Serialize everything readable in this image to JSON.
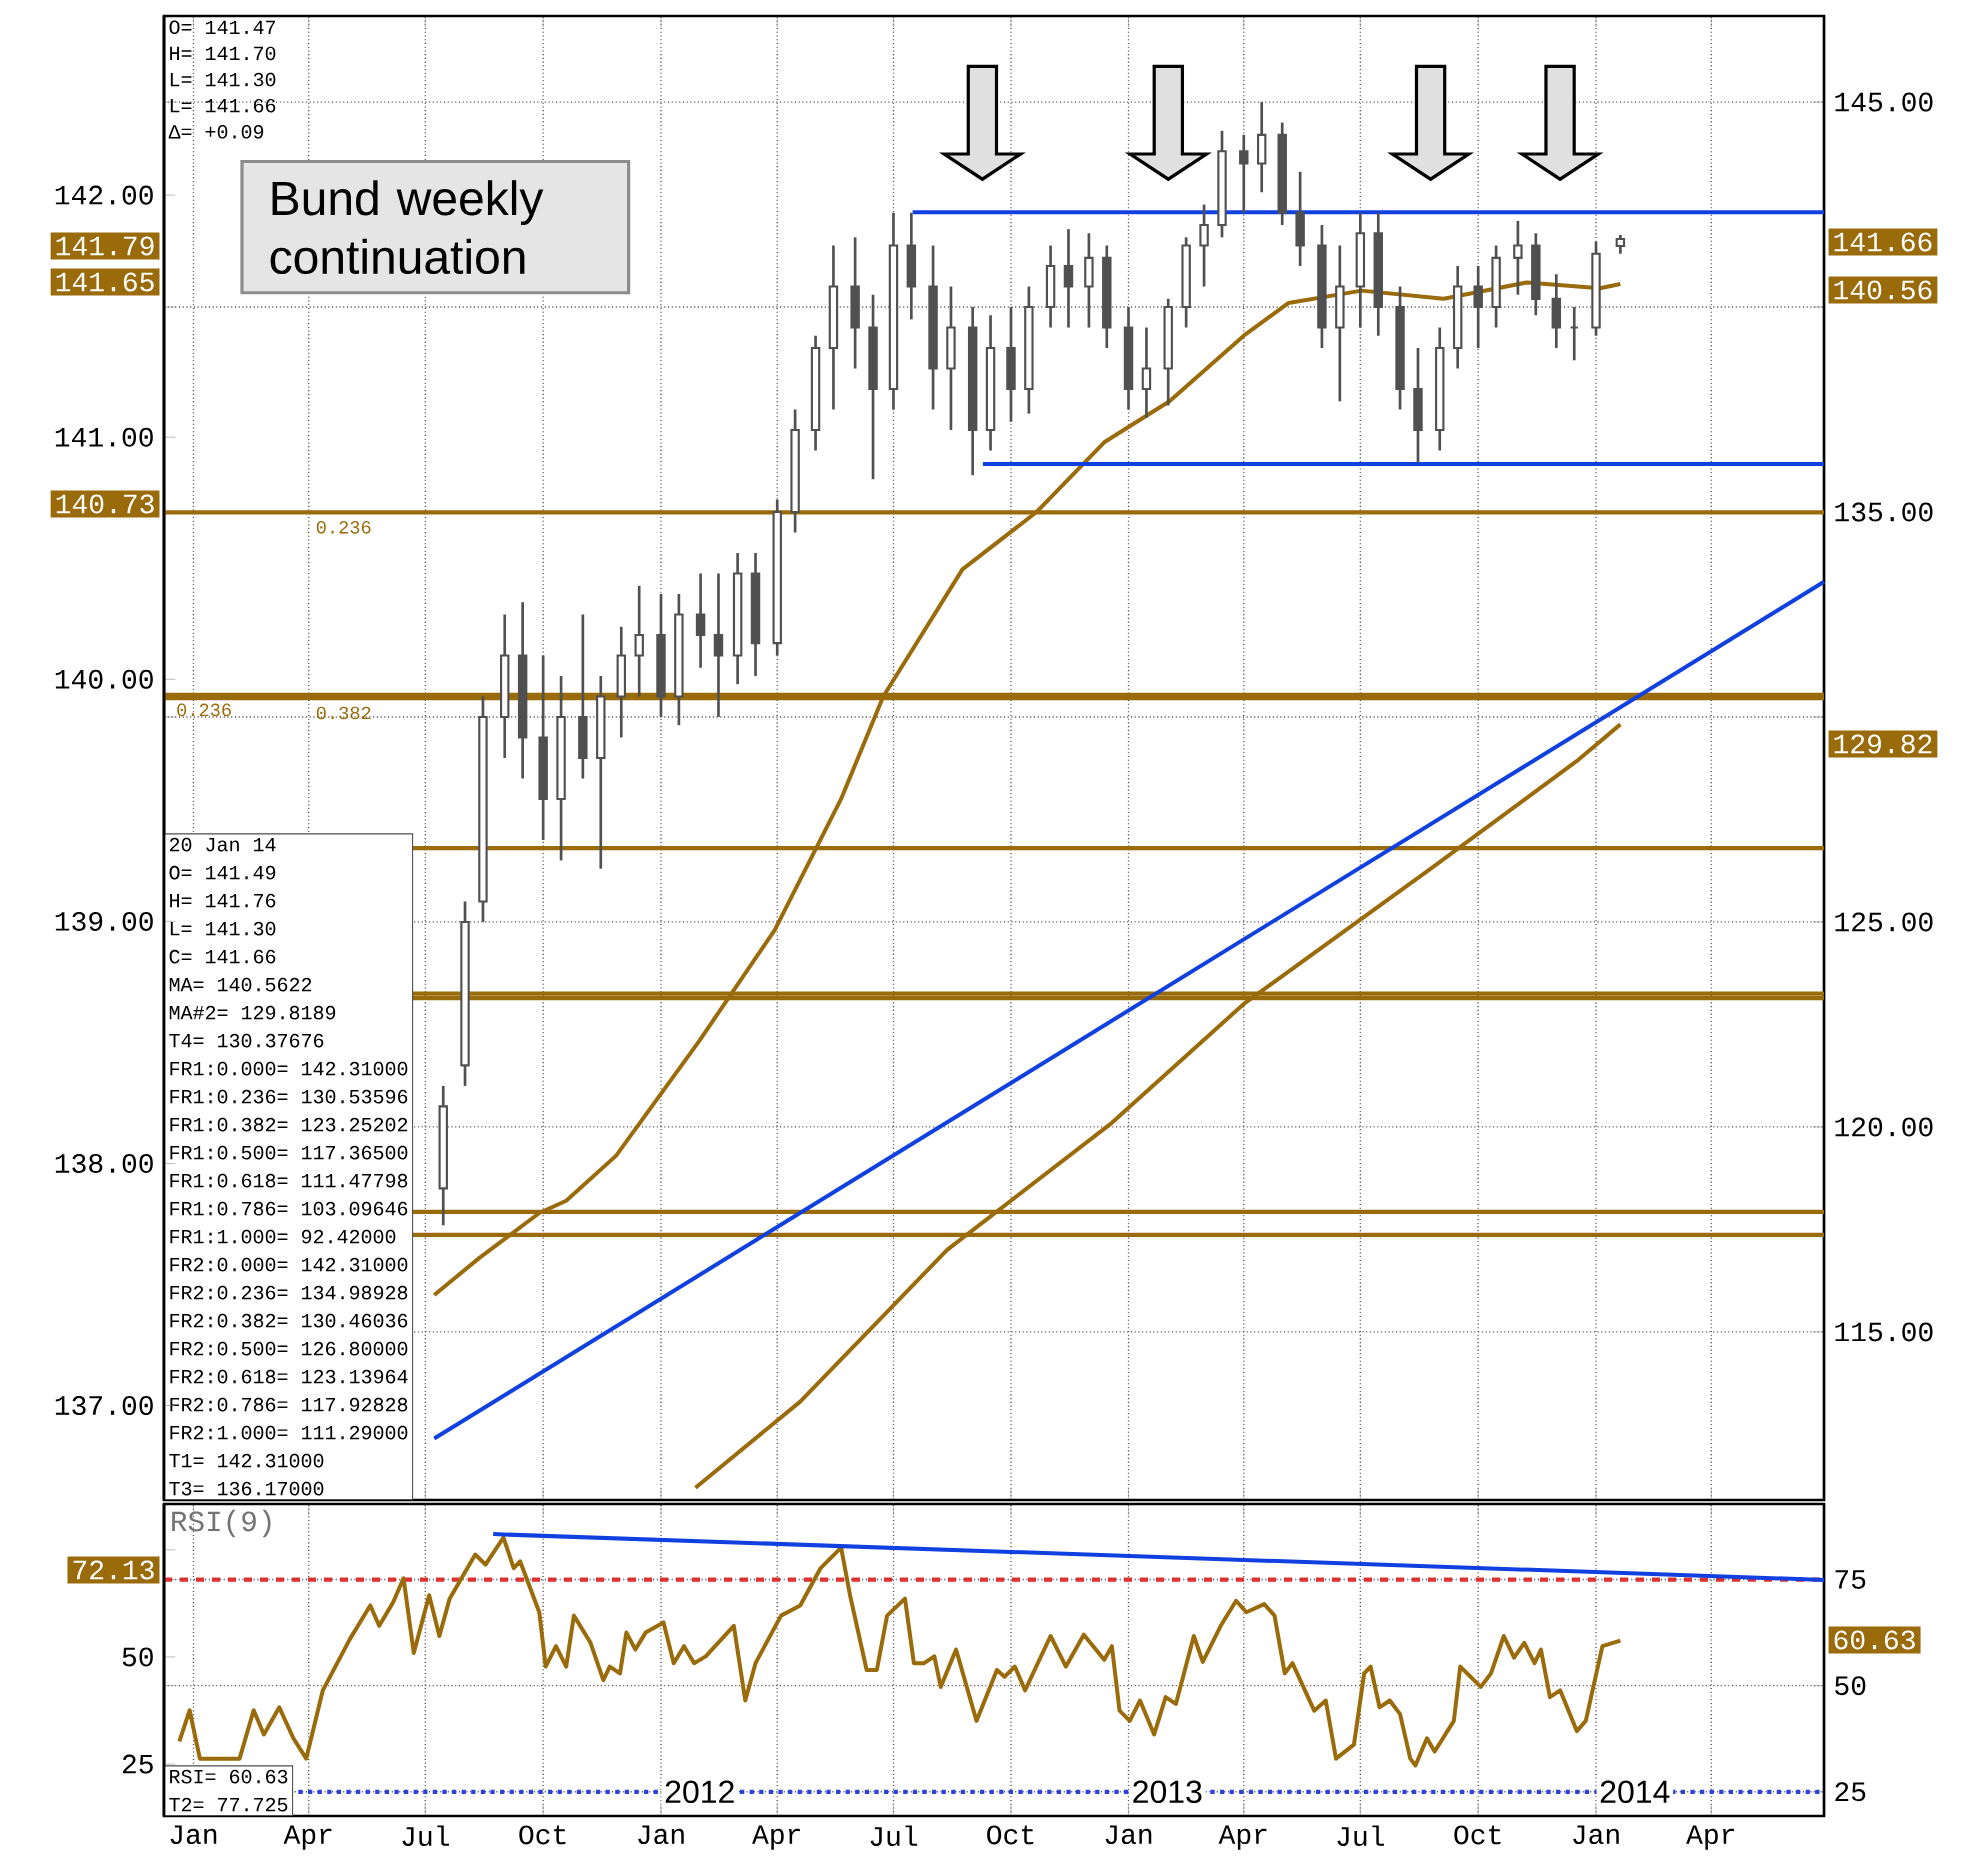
{
  "chart_data": [
    {
      "type": "candlestick",
      "title": "Bund weekly continuation",
      "color": "#505050",
      "x": [
        "2011-07-15",
        "2011-08-01",
        "2011-08-15",
        "2011-09-01",
        "2011-09-15",
        "2011-10-01",
        "2011-10-15",
        "2011-11-01",
        "2011-11-15",
        "2011-12-01",
        "2011-12-15",
        "2012-01-01",
        "2012-01-15",
        "2012-02-01",
        "2012-02-15",
        "2012-03-01",
        "2012-03-15",
        "2012-04-01",
        "2012-04-15",
        "2012-05-01",
        "2012-05-15",
        "2012-06-01",
        "2012-06-15",
        "2012-07-01",
        "2012-07-15",
        "2012-08-01",
        "2012-08-15",
        "2012-09-01",
        "2012-09-15",
        "2012-10-01",
        "2012-10-15",
        "2012-11-01",
        "2012-11-15",
        "2012-12-01",
        "2012-12-15",
        "2013-01-01",
        "2013-01-15",
        "2013-02-01",
        "2013-02-15",
        "2013-03-01",
        "2013-03-15",
        "2013-04-01",
        "2013-04-15",
        "2013-05-01",
        "2013-05-15",
        "2013-06-01",
        "2013-06-15",
        "2013-07-01",
        "2013-07-15",
        "2013-08-01",
        "2013-08-15",
        "2013-09-01",
        "2013-09-15",
        "2013-10-01",
        "2013-10-15",
        "2013-11-01",
        "2013-11-15",
        "2013-12-01",
        "2013-12-15",
        "2014-01-01",
        "2014-01-20"
      ],
      "ohlc": [
        [
          118.5,
          121,
          117.6,
          120.5
        ],
        [
          121.5,
          125.5,
          121,
          125
        ],
        [
          125.5,
          130.5,
          125,
          130
        ],
        [
          130,
          132.5,
          129,
          131.5
        ],
        [
          131.5,
          132.8,
          128.5,
          129.5
        ],
        [
          129.5,
          131.5,
          127,
          128
        ],
        [
          128,
          131,
          126.5,
          130
        ],
        [
          130,
          132.5,
          128.5,
          129
        ],
        [
          129,
          131,
          126.3,
          130.5
        ],
        [
          130.5,
          132.2,
          129.5,
          131.5
        ],
        [
          131.5,
          133.2,
          130.5,
          132
        ],
        [
          132,
          133,
          130,
          130.5
        ],
        [
          130.5,
          133,
          129.8,
          132.5
        ],
        [
          132.5,
          133.5,
          131.2,
          132
        ],
        [
          132,
          133.5,
          130,
          131.5
        ],
        [
          131.5,
          134,
          130.8,
          133.5
        ],
        [
          133.5,
          134,
          131,
          131.8
        ],
        [
          131.8,
          135.3,
          131.5,
          135
        ],
        [
          135,
          137.5,
          134.5,
          137
        ],
        [
          137,
          139.3,
          136.5,
          139
        ],
        [
          139,
          141.5,
          137.5,
          140.5
        ],
        [
          140.5,
          141.7,
          138.5,
          139.5
        ],
        [
          139.5,
          140.3,
          135.8,
          138
        ],
        [
          138,
          142.3,
          137.5,
          141.5
        ],
        [
          141.5,
          142.3,
          139.7,
          140.5
        ],
        [
          140.5,
          141.5,
          137.5,
          138.5
        ],
        [
          138.5,
          140.5,
          137,
          139.5
        ],
        [
          139.5,
          140,
          135.9,
          137
        ],
        [
          137,
          139.8,
          136.5,
          139
        ],
        [
          139,
          140,
          137.2,
          138
        ],
        [
          138,
          140.5,
          137.4,
          140
        ],
        [
          140,
          141.5,
          139.5,
          141
        ],
        [
          141,
          141.9,
          139.5,
          140.5
        ],
        [
          140.5,
          141.8,
          139.5,
          141.2
        ],
        [
          141.2,
          141.5,
          139,
          139.5
        ],
        [
          139.5,
          140,
          137.5,
          138
        ],
        [
          138,
          139.5,
          137.3,
          138.5
        ],
        [
          138.5,
          140.2,
          137.6,
          140
        ],
        [
          140,
          141.7,
          139.5,
          141.5
        ],
        [
          141.5,
          142.5,
          140.5,
          142
        ],
        [
          142,
          144.3,
          141.7,
          143.8
        ],
        [
          143.8,
          144.2,
          142.3,
          143.5
        ],
        [
          143.5,
          145,
          142.8,
          144.2
        ],
        [
          144.2,
          144.5,
          142,
          142.3
        ],
        [
          142.3,
          143.3,
          141,
          141.5
        ],
        [
          141.5,
          142,
          139,
          139.5
        ],
        [
          139.5,
          141.5,
          137.7,
          140.5
        ],
        [
          140.5,
          142.3,
          139.5,
          141.8
        ],
        [
          141.8,
          142.3,
          139.3,
          140
        ],
        [
          140,
          140.5,
          137.5,
          138
        ],
        [
          138,
          139,
          136.2,
          137
        ],
        [
          137,
          139.5,
          136.5,
          139
        ],
        [
          139,
          141,
          138.5,
          140.5
        ],
        [
          140.5,
          141,
          139,
          140
        ],
        [
          140,
          141.5,
          139.5,
          141.2
        ],
        [
          141.2,
          142.1,
          140.3,
          141.5
        ],
        [
          141.5,
          141.8,
          139.8,
          140.2
        ],
        [
          140.2,
          140.8,
          139,
          139.5
        ],
        [
          139.5,
          140,
          138.7,
          139.5
        ],
        [
          139.5,
          141.6,
          139.3,
          141.3
        ],
        [
          141.49,
          141.76,
          141.3,
          141.66
        ]
      ],
      "series": [
        {
          "type": "line",
          "color": "#9a6b0a",
          "x": [
            "2011-07-08",
            "2011-08-12",
            "2011-09-28",
            "2011-10-19",
            "2011-11-27",
            "2012-01-31",
            "2012-03-30",
            "2012-05-21",
            "2012-06-23",
            "2012-08-24",
            "2012-10-21",
            "2012-12-13",
            "2013-02-02",
            "2013-04-01",
            "2013-05-06",
            "2013-07-02",
            "2013-09-04",
            "2013-11-08",
            "2014-01-04",
            "2014-01-20"
          ],
          "values": [
            115.9,
            116.8,
            117.9,
            118.2,
            119.3,
            122.1,
            124.8,
            128.0,
            130.5,
            133.6,
            135.0,
            136.7,
            137.7,
            139.3,
            140.1,
            140.4,
            140.2,
            140.6,
            140.46,
            140.56
          ]
        },
        {
          "type": "line",
          "color": "#9a6b0a",
          "x": [
            "2012-01-28",
            "2012-04-19",
            "2012-08-12",
            "2012-12-19",
            "2013-04-01",
            "2013-08-25",
            "2013-12-18",
            "2014-01-20"
          ],
          "values": [
            111.2,
            113.3,
            117.0,
            120.1,
            123.0,
            126.3,
            128.95,
            129.82
          ]
        },
        {
          "type": "line",
          "color": "#1040e0",
          "x": [
            "2011-07-08",
            "2014-06-28"
          ],
          "values": [
            112.4,
            133.3
          ]
        },
        {
          "type": "line",
          "color": "#1040e0",
          "x": [
            "2012-07-16",
            "2014-06-28"
          ],
          "values": [
            142.31,
            142.31
          ]
        },
        {
          "type": "line",
          "color": "#1040e0",
          "x": [
            "2012-09-09",
            "2014-06-28"
          ],
          "values": [
            136.17,
            136.17
          ]
        }
      ],
      "xlim": [
        "2010-12-09",
        "2014-06-28"
      ],
      "xticks": [
        {
          "value": "2011-01-01",
          "label": null
        },
        {
          "value": "2011-04-01",
          "label": null
        },
        {
          "value": "2011-07-01",
          "label": null
        },
        {
          "value": "2011-10-01",
          "label": null
        },
        {
          "value": "2012-01-01",
          "label": null
        },
        {
          "value": "2012-04-01",
          "label": null
        },
        {
          "value": "2012-07-01",
          "label": null
        },
        {
          "value": "2012-10-01",
          "label": null
        },
        {
          "value": "2013-01-01",
          "label": null
        },
        {
          "value": "2013-04-01",
          "label": null
        },
        {
          "value": "2013-07-01",
          "label": null
        },
        {
          "value": "2013-10-01",
          "label": null
        },
        {
          "value": "2014-01-01",
          "label": null
        },
        {
          "value": "2014-04-01",
          "label": null
        }
      ],
      "ylim": [
        110.9,
        147.1
      ],
      "yticks": [
        {
          "value": 115,
          "label": "115.00"
        },
        {
          "value": 120,
          "label": "120.00"
        },
        {
          "value": 125,
          "label": "125.00"
        },
        {
          "value": 130,
          "label": null
        },
        {
          "value": 135,
          "label": "135.00"
        },
        {
          "value": 140,
          "label": null
        },
        {
          "value": 145,
          "label": "145.00"
        }
      ],
      "y2lim": [
        136.61,
        142.74
      ],
      "y2ticks": [
        {
          "value": 137,
          "label": "137.00"
        },
        {
          "value": 138,
          "label": "138.00"
        },
        {
          "value": 139,
          "label": "139.00"
        },
        {
          "value": 140,
          "label": "140.00"
        },
        {
          "value": 141,
          "label": "141.00"
        },
        {
          "value": 142,
          "label": "142.00"
        }
      ],
      "tick_labels": "y",
      "grid": true,
      "ref_lines": [
        {
          "axis": "y",
          "value": 134.98928,
          "color": "#9a6b0a"
        },
        {
          "axis": "y",
          "value": 130.53596,
          "color": "#9a6b0a"
        },
        {
          "axis": "y",
          "value": 130.46036,
          "color": "#9a6b0a"
        },
        {
          "axis": "y",
          "value": 126.8,
          "color": "#9a6b0a"
        },
        {
          "axis": "y",
          "value": 123.25202,
          "color": "#9a6b0a"
        },
        {
          "axis": "y",
          "value": 123.13964,
          "color": "#9a6b0a"
        },
        {
          "axis": "y",
          "value": 117.92828,
          "color": "#9a6b0a"
        },
        {
          "axis": "y",
          "value": 117.365,
          "color": "#9a6b0a"
        }
      ],
      "annotations": [
        "O= 141.47",
        "H= 141.70",
        "L= 141.30",
        "L= 141.66",
        "Δ= +0.09",
        "20 Jan 14",
        "O= 141.49",
        "H= 141.76",
        "L= 141.30",
        "C= 141.66",
        "MA= 140.5622",
        "MA#2= 129.8189",
        "T4= 130.37676",
        "FR1:0.000= 142.31000",
        "FR1:0.236= 130.53596",
        "FR1:0.382= 123.25202",
        "FR1:0.500= 117.36500",
        "FR1:0.618= 111.47798",
        "FR1:0.786= 103.09646",
        "FR1:1.000= 92.42000",
        "FR2:0.000= 142.31000",
        "FR2:0.236= 134.98928",
        "FR2:0.382= 130.46036",
        "FR2:0.500= 126.80000",
        "FR2:0.618= 123.13964",
        "FR2:0.786= 117.92828",
        "FR2:1.000= 111.29000",
        "T1= 142.31000",
        "T3= 136.17000",
        "141.79",
        "141.65",
        "140.73",
        "141.66",
        "140.56",
        "129.82",
        {
          "text": "0.236",
          "x": "2011-04-05",
          "y": 134.98928
        },
        {
          "text": "0.236",
          "x": "2010-12-17",
          "y": 130.53596
        },
        {
          "text": "0.382",
          "x": "2011-04-05",
          "y": 130.46036
        }
      ]
    },
    {
      "type": "line",
      "title": "RSI(9)",
      "series": [
        {
          "color": "#9a6b0a",
          "x": [
            "2010-12-21",
            "2010-12-29",
            "2011-01-06",
            "2011-02-06",
            "2011-02-17",
            "2011-02-25",
            "2011-03-09",
            "2011-03-20",
            "2011-03-30",
            "2011-04-12",
            "2011-05-03",
            "2011-05-19",
            "2011-05-26",
            "2011-06-06",
            "2011-06-14",
            "2011-06-22",
            "2011-07-04",
            "2011-07-12",
            "2011-07-20",
            "2011-08-09",
            "2011-08-17",
            "2011-08-31",
            "2011-09-08",
            "2011-09-13",
            "2011-09-28",
            "2011-10-03",
            "2011-10-11",
            "2011-10-19",
            "2011-10-25",
            "2011-11-07",
            "2011-11-17",
            "2011-11-22",
            "2011-11-30",
            "2011-12-05",
            "2011-12-12",
            "2011-12-20",
            "2012-01-03",
            "2012-01-11",
            "2012-01-19",
            "2012-01-27",
            "2012-02-05",
            "2012-02-27",
            "2012-03-07",
            "2012-03-15",
            "2012-04-04",
            "2012-04-19",
            "2012-05-05",
            "2012-05-21",
            "2012-05-28",
            "2012-06-10",
            "2012-06-18",
            "2012-06-26",
            "2012-07-10",
            "2012-07-17",
            "2012-07-25",
            "2012-08-02",
            "2012-08-07",
            "2012-08-19",
            "2012-09-04",
            "2012-09-20",
            "2012-09-26",
            "2012-10-04",
            "2012-10-12",
            "2012-11-01",
            "2012-11-13",
            "2012-11-27",
            "2012-12-13",
            "2012-12-19",
            "2012-12-25",
            "2013-01-02",
            "2013-01-10",
            "2013-01-21",
            "2013-01-30",
            "2013-02-07",
            "2013-02-21",
            "2013-02-28",
            "2013-03-14",
            "2013-03-26",
            "2013-04-03",
            "2013-04-17",
            "2013-04-25",
            "2013-05-03",
            "2013-05-09",
            "2013-05-26",
            "2013-06-04",
            "2013-06-12",
            "2013-06-26",
            "2013-07-04",
            "2013-07-09",
            "2013-07-16",
            "2013-07-24",
            "2013-08-01",
            "2013-08-09",
            "2013-08-13",
            "2013-08-22",
            "2013-08-28",
            "2013-09-12",
            "2013-09-17",
            "2013-10-03",
            "2013-10-11",
            "2013-10-21",
            "2013-10-29",
            "2013-11-06",
            "2013-11-14",
            "2013-11-19",
            "2013-11-26",
            "2013-12-04",
            "2013-12-17",
            "2013-12-24",
            "2014-01-06",
            "2014-01-20"
          ],
          "values": [
            36.9,
            44.2,
            32.8,
            32.8,
            44.2,
            38.5,
            44.9,
            37.6,
            32.8,
            48.9,
            60.9,
            68.9,
            64.1,
            69.7,
            75.3,
            57.7,
            71.3,
            61.7,
            70.5,
            80.9,
            78.5,
            84.9,
            77.7,
            79.3,
            67.3,
            54.5,
            59.3,
            54.5,
            66.5,
            60.1,
            51.3,
            54.5,
            52.9,
            62.5,
            58.5,
            62.5,
            64.9,
            55.3,
            59.3,
            55.3,
            56.9,
            64.1,
            46.5,
            55.3,
            66.5,
            68.9,
            77.7,
            82.5,
            71.3,
            53.7,
            53.7,
            66.5,
            70.5,
            55.3,
            55.3,
            56.9,
            49.7,
            58.5,
            41.7,
            53.7,
            52.1,
            54.5,
            48.9,
            61.7,
            54.5,
            62.0,
            56.1,
            59.3,
            44.1,
            41.7,
            46.5,
            38.5,
            47.3,
            45.7,
            61.7,
            55.6,
            64.1,
            70.0,
            67.3,
            69.2,
            66.5,
            52.9,
            55.3,
            44.1,
            46.5,
            32.8,
            36.1,
            52.9,
            54.5,
            44.9,
            46.5,
            43.3,
            32.8,
            31.2,
            37.6,
            34.5,
            41.7,
            54.5,
            49.7,
            52.9,
            61.7,
            56.6,
            60.1,
            55.3,
            58.5,
            47.3,
            48.9,
            39.3,
            41.7,
            59.3,
            60.63
          ]
        },
        {
          "color": "#1040e0",
          "x": [
            "2011-08-23",
            "2014-06-28"
          ],
          "values": [
            85.7,
            74.9
          ]
        }
      ],
      "xlim": [
        "2010-12-09",
        "2014-06-28"
      ],
      "xticks": [
        {
          "value": "2011-01-01",
          "label": "Jan"
        },
        {
          "value": "2011-04-01",
          "label": "Apr"
        },
        {
          "value": "2011-07-01",
          "label": "Jul"
        },
        {
          "value": "2011-10-01",
          "label": "Oct"
        },
        {
          "value": "2012-01-01",
          "label": "Jan"
        },
        {
          "value": "2012-04-01",
          "label": "Apr"
        },
        {
          "value": "2012-07-01",
          "label": "Jul"
        },
        {
          "value": "2012-10-01",
          "label": "Oct"
        },
        {
          "value": "2013-01-01",
          "label": "Jan"
        },
        {
          "value": "2013-04-01",
          "label": "Apr"
        },
        {
          "value": "2013-07-01",
          "label": "Jul"
        },
        {
          "value": "2013-10-01",
          "label": "Oct"
        },
        {
          "value": "2014-01-01",
          "label": "Jan"
        },
        {
          "value": "2014-04-01",
          "label": "Apr"
        }
      ],
      "ylim": [
        19.3,
        92.8
      ],
      "yticks": [
        25,
        50,
        75
      ],
      "y2lim": [
        12.9,
        85.7
      ],
      "y2ticks": [
        25,
        50,
        {
          "value": 75,
          "label": null
        }
      ],
      "grid": true,
      "ref_lines": [
        {
          "axis": "y",
          "value": 75,
          "color": "#e03030",
          "line_style": "dashed"
        },
        {
          "axis": "y",
          "value": 25,
          "color": "#3040e0",
          "line_style": "dotted"
        }
      ],
      "annotations": [
        "RSI= 60.63",
        "T2= 77.725",
        "72.13",
        "60.63",
        {
          "text": "2012",
          "x": "2012-01-01",
          "y": 25
        },
        {
          "text": "2013",
          "x": "2013-01-01",
          "y": 25
        },
        {
          "text": "2014",
          "x": "2014-01-01",
          "y": 25
        }
      ]
    }
  ]
}
